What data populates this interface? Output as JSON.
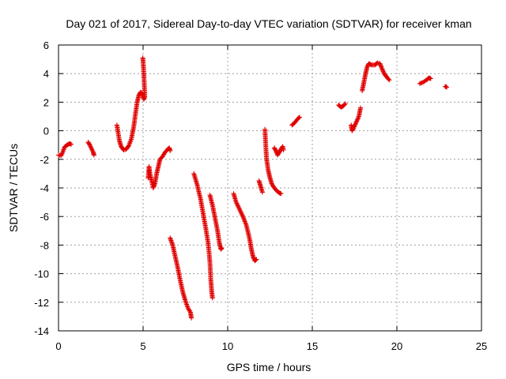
{
  "chart_data": {
    "type": "scatter",
    "title": "Day 021 of 2017, Sidereal Day-to-day VTEC variation (SDTVAR) for receiver kman",
    "xlabel": "GPS time / hours",
    "ylabel": "SDTVAR / TECUs",
    "xlim": [
      0,
      25
    ],
    "ylim": [
      -14,
      6
    ],
    "xticks": [
      0,
      5,
      10,
      15,
      20,
      25
    ],
    "yticks": [
      -14,
      -12,
      -10,
      -8,
      -6,
      -4,
      -2,
      0,
      2,
      4,
      6
    ],
    "grid": true,
    "marker": "+",
    "color": "#e00000",
    "segments": [
      {
        "points": [
          [
            0.0,
            -1.7
          ],
          [
            0.15,
            -1.75
          ],
          [
            0.25,
            -1.5
          ],
          [
            0.35,
            -1.15
          ],
          [
            0.5,
            -1.0
          ],
          [
            0.65,
            -0.9
          ],
          [
            0.75,
            -0.95
          ]
        ]
      },
      {
        "points": [
          [
            1.75,
            -0.8
          ],
          [
            1.85,
            -1.0
          ],
          [
            1.95,
            -1.25
          ],
          [
            2.05,
            -1.5
          ],
          [
            2.1,
            -1.7
          ]
        ]
      },
      {
        "points": [
          [
            3.45,
            0.4
          ],
          [
            3.5,
            0.05
          ],
          [
            3.6,
            -0.7
          ],
          [
            3.7,
            -1.1
          ],
          [
            3.85,
            -1.35
          ],
          [
            4.0,
            -1.3
          ],
          [
            4.15,
            -1.05
          ],
          [
            4.3,
            -0.6
          ],
          [
            4.45,
            0.3
          ],
          [
            4.55,
            1.2
          ],
          [
            4.65,
            2.0
          ],
          [
            4.75,
            2.5
          ],
          [
            4.85,
            2.7
          ],
          [
            4.95,
            2.6
          ],
          [
            5.0,
            2.4
          ],
          [
            5.05,
            2.2
          ]
        ]
      },
      {
        "points": [
          [
            4.98,
            5.1
          ],
          [
            5.0,
            4.85
          ],
          [
            5.02,
            4.5
          ],
          [
            5.05,
            3.8
          ],
          [
            5.08,
            3.0
          ],
          [
            5.1,
            2.3
          ]
        ]
      },
      {
        "points": [
          [
            5.3,
            -3.3
          ],
          [
            5.35,
            -2.5
          ],
          [
            5.4,
            -3.0
          ],
          [
            5.5,
            -3.5
          ],
          [
            5.6,
            -4.0
          ],
          [
            5.7,
            -3.7
          ],
          [
            5.8,
            -3.0
          ],
          [
            5.9,
            -2.5
          ],
          [
            6.0,
            -2.0
          ],
          [
            6.15,
            -1.8
          ],
          [
            6.3,
            -1.5
          ],
          [
            6.45,
            -1.3
          ],
          [
            6.55,
            -1.2
          ],
          [
            6.6,
            -1.4
          ]
        ]
      },
      {
        "points": [
          [
            6.6,
            -7.5
          ],
          [
            6.75,
            -8.0
          ],
          [
            6.9,
            -8.8
          ],
          [
            7.05,
            -9.6
          ],
          [
            7.2,
            -10.5
          ],
          [
            7.35,
            -11.3
          ],
          [
            7.5,
            -11.9
          ],
          [
            7.65,
            -12.4
          ],
          [
            7.8,
            -12.7
          ],
          [
            7.85,
            -13.1
          ]
        ]
      },
      {
        "points": [
          [
            8.0,
            -3.0
          ],
          [
            8.2,
            -3.8
          ],
          [
            8.4,
            -4.8
          ],
          [
            8.55,
            -5.8
          ],
          [
            8.7,
            -6.8
          ],
          [
            8.85,
            -7.9
          ],
          [
            8.95,
            -9.2
          ],
          [
            9.0,
            -10.4
          ],
          [
            9.05,
            -11.2
          ],
          [
            9.1,
            -11.7
          ]
        ]
      },
      {
        "points": [
          [
            8.95,
            -4.5
          ],
          [
            9.1,
            -5.2
          ],
          [
            9.25,
            -6.1
          ],
          [
            9.4,
            -7.0
          ],
          [
            9.5,
            -7.8
          ],
          [
            9.6,
            -8.3
          ],
          [
            9.65,
            -8.2
          ]
        ]
      },
      {
        "points": [
          [
            10.35,
            -4.4
          ],
          [
            10.5,
            -5.0
          ],
          [
            10.7,
            -5.5
          ],
          [
            10.9,
            -6.0
          ],
          [
            11.1,
            -6.6
          ],
          [
            11.3,
            -7.6
          ],
          [
            11.4,
            -8.3
          ],
          [
            11.5,
            -8.8
          ],
          [
            11.6,
            -9.1
          ],
          [
            11.7,
            -9.0
          ]
        ]
      },
      {
        "points": [
          [
            11.85,
            -3.5
          ],
          [
            11.95,
            -3.9
          ],
          [
            12.05,
            -4.3
          ]
        ]
      },
      {
        "points": [
          [
            12.2,
            0.1
          ],
          [
            12.25,
            -1.0
          ],
          [
            12.3,
            -2.0
          ],
          [
            12.4,
            -2.8
          ],
          [
            12.5,
            -3.3
          ],
          [
            12.6,
            -3.7
          ],
          [
            12.75,
            -4.0
          ],
          [
            12.9,
            -4.2
          ],
          [
            13.05,
            -4.35
          ],
          [
            13.15,
            -4.4
          ]
        ]
      },
      {
        "points": [
          [
            12.75,
            -1.2
          ],
          [
            12.85,
            -1.4
          ],
          [
            12.95,
            -1.7
          ],
          [
            13.05,
            -1.5
          ],
          [
            13.15,
            -1.3
          ],
          [
            13.25,
            -1.1
          ],
          [
            13.3,
            -1.35
          ]
        ]
      },
      {
        "points": [
          [
            13.8,
            0.4
          ],
          [
            13.95,
            0.55
          ],
          [
            14.05,
            0.7
          ],
          [
            14.15,
            0.85
          ],
          [
            14.25,
            0.95
          ]
        ]
      },
      {
        "points": [
          [
            16.55,
            1.8
          ],
          [
            16.7,
            1.65
          ],
          [
            16.85,
            1.75
          ],
          [
            16.95,
            1.9
          ]
        ]
      },
      {
        "points": [
          [
            17.3,
            0.4
          ],
          [
            17.35,
            0.0
          ],
          [
            17.45,
            0.2
          ],
          [
            17.6,
            0.6
          ],
          [
            17.75,
            1.0
          ],
          [
            17.85,
            1.6
          ]
        ]
      },
      {
        "points": [
          [
            17.95,
            2.8
          ],
          [
            18.05,
            3.4
          ],
          [
            18.15,
            4.0
          ],
          [
            18.25,
            4.5
          ],
          [
            18.35,
            4.7
          ],
          [
            18.5,
            4.6
          ],
          [
            18.7,
            4.6
          ],
          [
            18.85,
            4.75
          ],
          [
            19.0,
            4.7
          ],
          [
            19.1,
            4.4
          ],
          [
            19.25,
            4.0
          ],
          [
            19.4,
            3.75
          ],
          [
            19.55,
            3.55
          ]
        ]
      },
      {
        "points": [
          [
            21.35,
            3.3
          ],
          [
            21.55,
            3.4
          ],
          [
            21.75,
            3.55
          ],
          [
            21.9,
            3.7
          ],
          [
            22.0,
            3.65
          ]
        ]
      },
      {
        "points": [
          [
            22.85,
            3.1
          ],
          [
            22.95,
            3.05
          ]
        ]
      }
    ]
  }
}
